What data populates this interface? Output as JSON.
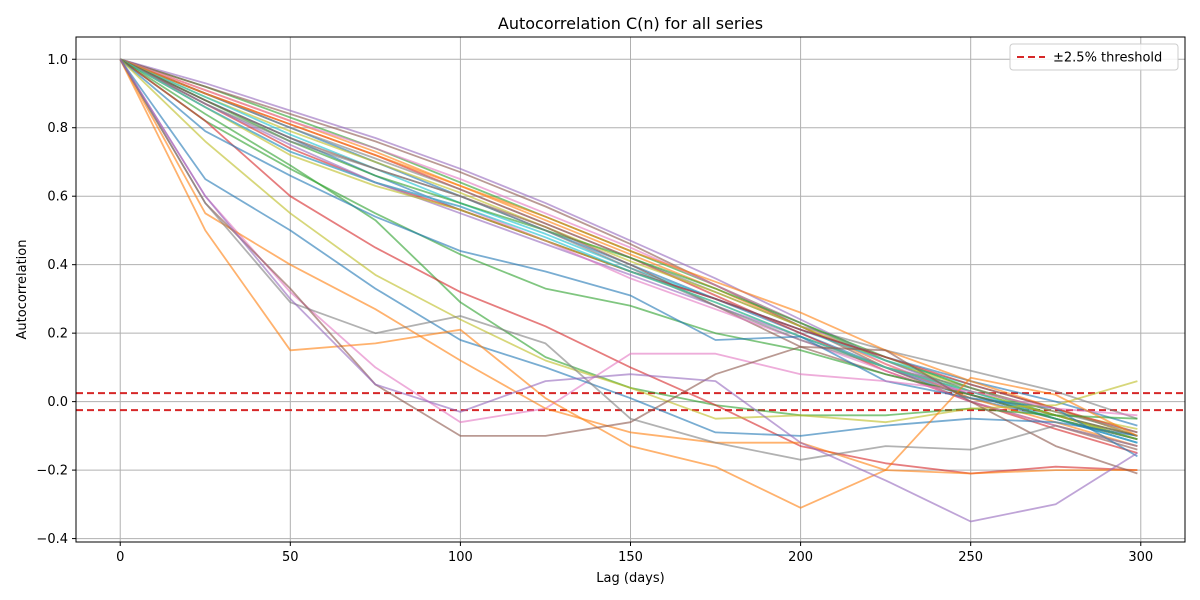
{
  "chart_data": {
    "type": "line",
    "title": "Autocorrelation C(n) for all series",
    "xlabel": "Lag (days)",
    "ylabel": "Autocorrelation",
    "xlim": [
      -13,
      313
    ],
    "ylim": [
      -0.41,
      1.065
    ],
    "x_ticks": [
      0,
      50,
      100,
      150,
      200,
      250,
      300
    ],
    "y_ticks": [
      -0.4,
      -0.2,
      0.0,
      0.2,
      0.4,
      0.6,
      0.8,
      1.0
    ],
    "grid": true,
    "legend_position": "top-right",
    "thresholds": [
      {
        "label": "±2.5% threshold",
        "values": [
          0.025,
          -0.025
        ],
        "color": "#d62728",
        "style": "dashed"
      }
    ],
    "x": [
      0,
      25,
      50,
      75,
      100,
      125,
      150,
      175,
      200,
      225,
      250,
      275,
      299
    ],
    "series": [
      {
        "color": "#1f77b4",
        "values": [
          1.0,
          0.9,
          0.8,
          0.7,
          0.6,
          0.5,
          0.4,
          0.3,
          0.2,
          0.1,
          0.01,
          -0.05,
          -0.12
        ]
      },
      {
        "color": "#ff7f0e",
        "values": [
          1.0,
          0.91,
          0.82,
          0.73,
          0.63,
          0.53,
          0.43,
          0.33,
          0.22,
          0.11,
          0.01,
          -0.06,
          -0.13
        ]
      },
      {
        "color": "#2ca02c",
        "values": [
          1.0,
          0.92,
          0.83,
          0.74,
          0.64,
          0.54,
          0.44,
          0.34,
          0.23,
          0.12,
          0.03,
          -0.04,
          -0.11
        ]
      },
      {
        "color": "#d62728",
        "values": [
          1.0,
          0.9,
          0.81,
          0.72,
          0.62,
          0.52,
          0.42,
          0.31,
          0.2,
          0.09,
          0.0,
          -0.08,
          -0.15
        ]
      },
      {
        "color": "#9467bd",
        "values": [
          1.0,
          0.93,
          0.85,
          0.77,
          0.68,
          0.58,
          0.47,
          0.36,
          0.24,
          0.12,
          0.02,
          -0.05,
          -0.12
        ]
      },
      {
        "color": "#8c564b",
        "values": [
          1.0,
          0.92,
          0.84,
          0.76,
          0.67,
          0.57,
          0.46,
          0.34,
          0.22,
          0.1,
          0.0,
          -0.07,
          -0.14
        ]
      },
      {
        "color": "#e377c2",
        "values": [
          1.0,
          0.91,
          0.82,
          0.74,
          0.65,
          0.55,
          0.45,
          0.34,
          0.23,
          0.11,
          0.02,
          -0.05,
          -0.11
        ]
      },
      {
        "color": "#7f7f7f",
        "values": [
          1.0,
          0.9,
          0.8,
          0.71,
          0.62,
          0.52,
          0.42,
          0.32,
          0.22,
          0.15,
          0.09,
          0.03,
          -0.05
        ]
      },
      {
        "color": "#bcbd22",
        "values": [
          1.0,
          0.89,
          0.79,
          0.7,
          0.61,
          0.51,
          0.41,
          0.32,
          0.22,
          0.12,
          0.04,
          -0.03,
          -0.08
        ]
      },
      {
        "color": "#17becf",
        "values": [
          1.0,
          0.89,
          0.78,
          0.68,
          0.58,
          0.49,
          0.39,
          0.3,
          0.21,
          0.12,
          0.05,
          -0.02,
          -0.1
        ]
      },
      {
        "color": "#1f77b4",
        "values": [
          1.0,
          0.88,
          0.77,
          0.66,
          0.56,
          0.47,
          0.38,
          0.3,
          0.21,
          0.13,
          0.06,
          0.0,
          -0.07
        ]
      },
      {
        "color": "#ff7f0e",
        "values": [
          1.0,
          0.9,
          0.81,
          0.72,
          0.63,
          0.54,
          0.44,
          0.35,
          0.26,
          0.15,
          0.06,
          -0.02,
          -0.1
        ]
      },
      {
        "color": "#2ca02c",
        "values": [
          1.0,
          0.88,
          0.76,
          0.66,
          0.58,
          0.5,
          0.42,
          0.33,
          0.23,
          0.13,
          0.04,
          -0.04,
          -0.1
        ]
      },
      {
        "color": "#d62728",
        "values": [
          1.0,
          0.87,
          0.74,
          0.64,
          0.56,
          0.47,
          0.38,
          0.3,
          0.21,
          0.13,
          0.05,
          -0.02,
          -0.09
        ]
      },
      {
        "color": "#9467bd",
        "values": [
          1.0,
          0.87,
          0.75,
          0.64,
          0.55,
          0.46,
          0.37,
          0.28,
          0.19,
          0.1,
          0.02,
          -0.05,
          -0.11
        ]
      },
      {
        "color": "#8c564b",
        "values": [
          1.0,
          0.88,
          0.77,
          0.68,
          0.6,
          0.51,
          0.4,
          0.28,
          0.16,
          0.08,
          0.02,
          -0.04,
          -0.1
        ]
      },
      {
        "color": "#e377c2",
        "values": [
          1.0,
          0.86,
          0.73,
          0.64,
          0.57,
          0.47,
          0.36,
          0.27,
          0.18,
          0.09,
          0.0,
          -0.07,
          -0.13
        ]
      },
      {
        "color": "#7f7f7f",
        "values": [
          1.0,
          0.87,
          0.76,
          0.68,
          0.6,
          0.5,
          0.39,
          0.28,
          0.18,
          0.1,
          0.04,
          -0.03,
          -0.09
        ]
      },
      {
        "color": "#bcbd22",
        "values": [
          1.0,
          0.86,
          0.72,
          0.63,
          0.56,
          0.47,
          0.38,
          0.29,
          0.19,
          0.1,
          0.03,
          -0.04,
          -0.11
        ]
      },
      {
        "color": "#17becf",
        "values": [
          1.0,
          0.86,
          0.73,
          0.64,
          0.57,
          0.48,
          0.38,
          0.29,
          0.19,
          0.1,
          0.03,
          -0.05,
          -0.12
        ]
      },
      {
        "color": "#2ca02c",
        "values": [
          1.0,
          0.82,
          0.68,
          0.55,
          0.43,
          0.33,
          0.28,
          0.2,
          0.15,
          0.08,
          0.02,
          -0.05,
          -0.11
        ]
      },
      {
        "color": "#2ca02c",
        "values": [
          1.0,
          0.84,
          0.69,
          0.53,
          0.29,
          0.13,
          0.04,
          -0.01,
          -0.04,
          -0.04,
          -0.02,
          -0.04,
          -0.05
        ]
      },
      {
        "color": "#d62728",
        "values": [
          1.0,
          0.82,
          0.6,
          0.45,
          0.32,
          0.22,
          0.1,
          -0.01,
          -0.13,
          -0.18,
          -0.21,
          -0.19,
          -0.2
        ]
      },
      {
        "color": "#1f77b4",
        "values": [
          1.0,
          0.79,
          0.66,
          0.54,
          0.44,
          0.38,
          0.31,
          0.18,
          0.19,
          0.06,
          0.01,
          -0.02,
          -0.16
        ]
      },
      {
        "color": "#bcbd22",
        "values": [
          1.0,
          0.76,
          0.55,
          0.37,
          0.24,
          0.12,
          0.04,
          -0.05,
          -0.04,
          -0.06,
          -0.02,
          -0.01,
          0.06
        ]
      },
      {
        "color": "#e377c2",
        "values": [
          1.0,
          0.6,
          0.32,
          0.1,
          -0.06,
          -0.02,
          0.14,
          0.14,
          0.08,
          0.06,
          0.03,
          -0.02,
          -0.04
        ]
      },
      {
        "color": "#1f77b4",
        "values": [
          1.0,
          0.65,
          0.5,
          0.33,
          0.18,
          0.1,
          0.01,
          -0.09,
          -0.1,
          -0.07,
          -0.05,
          -0.06,
          -0.1
        ]
      },
      {
        "color": "#ff7f0e",
        "values": [
          1.0,
          0.55,
          0.4,
          0.27,
          0.12,
          -0.02,
          -0.09,
          -0.12,
          -0.12,
          -0.2,
          -0.21,
          -0.2,
          -0.2
        ]
      },
      {
        "color": "#ff7f0e",
        "values": [
          1.0,
          0.5,
          0.15,
          0.17,
          0.21,
          0.01,
          -0.13,
          -0.19,
          -0.31,
          -0.2,
          0.07,
          0.02,
          -0.1
        ]
      },
      {
        "color": "#8c564b",
        "values": [
          1.0,
          0.58,
          0.33,
          0.05,
          -0.1,
          -0.1,
          -0.06,
          0.08,
          0.16,
          0.15,
          0.0,
          -0.13,
          -0.21
        ]
      },
      {
        "color": "#7f7f7f",
        "values": [
          1.0,
          0.58,
          0.29,
          0.2,
          0.25,
          0.17,
          -0.05,
          -0.12,
          -0.17,
          -0.13,
          -0.14,
          -0.07,
          -0.13
        ]
      },
      {
        "color": "#9467bd",
        "values": [
          1.0,
          0.6,
          0.3,
          0.05,
          -0.03,
          0.06,
          0.08,
          0.06,
          -0.12,
          -0.23,
          -0.35,
          -0.3,
          -0.15
        ]
      }
    ]
  }
}
